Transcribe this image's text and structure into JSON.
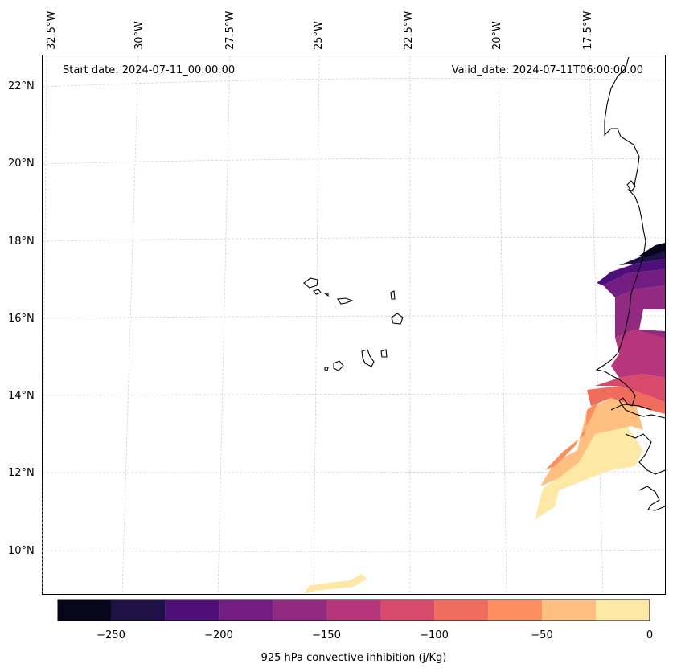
{
  "header": {
    "start_date": "Start date: 2024-07-11_00:00:00",
    "valid_date": "Valid_date: 2024-07-11T06:00:00.00"
  },
  "axes": {
    "lon_labels": [
      "32.5°W",
      "30°W",
      "27.5°W",
      "25°W",
      "22.5°W",
      "20°W",
      "17.5°W"
    ],
    "lat_labels": [
      "22°N",
      "20°N",
      "18°N",
      "16°N",
      "14°N",
      "12°N",
      "10°N"
    ]
  },
  "colorbar": {
    "label": "925 hPa convective inhibition (j/Kg)",
    "tick_labels": [
      "−250",
      "−200",
      "−150",
      "−100",
      "−50",
      "0"
    ],
    "levels": [
      -275,
      -250,
      -225,
      -200,
      -175,
      -150,
      -125,
      -100,
      -75,
      -50,
      -25,
      0
    ],
    "colors": [
      "#07061a",
      "#1f1147",
      "#4e0f7b",
      "#731c81",
      "#912a80",
      "#b5367a",
      "#d74a6b",
      "#f06c5c",
      "#fc8f60",
      "#febf80",
      "#fde8a6"
    ]
  },
  "colors": {
    "coastline": "#000000",
    "gridline": "#cccccc"
  }
}
